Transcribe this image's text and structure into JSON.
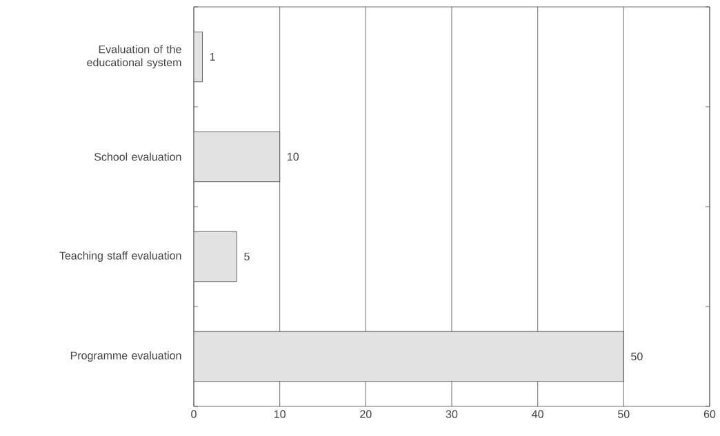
{
  "chart_data": {
    "type": "bar",
    "orientation": "horizontal",
    "categories": [
      "Evaluation of the educational system",
      "School evaluation",
      "Teaching staff evaluation",
      "Programme evaluation"
    ],
    "values": [
      1,
      10,
      5,
      50
    ],
    "color": "#e2e2e2",
    "data_labels": true,
    "xlim": [
      0,
      60
    ],
    "xticks": [
      0,
      10,
      20,
      30,
      40,
      50,
      60
    ],
    "grid": "x"
  }
}
